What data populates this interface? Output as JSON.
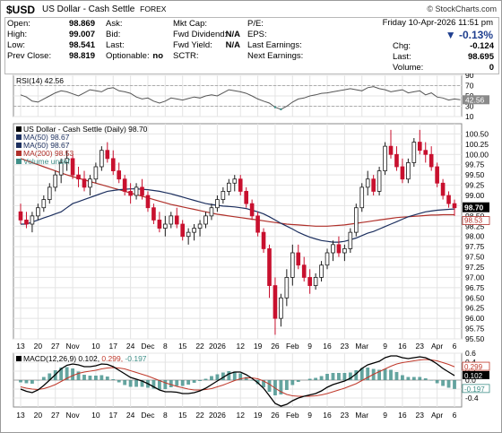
{
  "header": {
    "ticker": "$USD",
    "name": "US Dollar - Cash Settle",
    "exchange": "FOREX",
    "watermark": "© StockCharts.com"
  },
  "quote": {
    "date_line": "Friday   10-Apr-2026  11:51 pm",
    "change_pct": "-0.13%",
    "col1": [
      {
        "label": "Open:",
        "value": "98.869"
      },
      {
        "label": "High:",
        "value": "99.007"
      },
      {
        "label": "Low:",
        "value": "98.541"
      },
      {
        "label": "Prev Close:",
        "value": "98.819"
      }
    ],
    "col2": [
      {
        "label": "Ask:",
        "value": ""
      },
      {
        "label": "Bid:",
        "value": ""
      },
      {
        "label": "Last:",
        "value": ""
      },
      {
        "label": "Optionable:",
        "value": "no"
      }
    ],
    "col3": [
      {
        "label": "Mkt Cap:",
        "value": ""
      },
      {
        "label": "Fwd Dividend:",
        "value": "N/A"
      },
      {
        "label": "Fwd Yield:",
        "value": "N/A"
      },
      {
        "label": "SCTR:",
        "value": ""
      }
    ],
    "col4": [
      {
        "label": "P/E:",
        "value": ""
      },
      {
        "label": "EPS:",
        "value": ""
      },
      {
        "label": "Last Earnings:",
        "value": ""
      },
      {
        "label": "Next Earnings:",
        "value": ""
      }
    ],
    "col5": [
      {
        "label": "Chg:",
        "value": "-0.124"
      },
      {
        "label": "Last:",
        "value": "98.695"
      },
      {
        "label": "Volume:",
        "value": "0"
      }
    ]
  },
  "colors": {
    "up": "#1a1a1a",
    "down": "#c8102e",
    "ma50": "#1c2f5e",
    "ma200": "#b0302a",
    "rsi": "#555555",
    "macd": "#000000",
    "signal": "#c0392b",
    "hist": "#3f8f88"
  },
  "chart_data": [
    {
      "type": "line",
      "panel": "rsi",
      "legend": "RSI(14) 42.56",
      "ylim": [
        10,
        90
      ],
      "yticks": [
        90,
        70,
        50,
        30,
        10
      ],
      "last_label": "42.56",
      "values": [
        52,
        48,
        40,
        38,
        44,
        50,
        56,
        60,
        58,
        54,
        50,
        56,
        62,
        60,
        58,
        64,
        66,
        60,
        58,
        55,
        48,
        44,
        46,
        40,
        36,
        40,
        46,
        44,
        42,
        45,
        48,
        46,
        50,
        52,
        50,
        56,
        62,
        60,
        58,
        55,
        50,
        44,
        40,
        36,
        28,
        24,
        30,
        38,
        44,
        46,
        50,
        52,
        55,
        56,
        58,
        60,
        62,
        64,
        62,
        60,
        66,
        68,
        64,
        62,
        58,
        60,
        62,
        56,
        58,
        60,
        52,
        56,
        48,
        46,
        42,
        44,
        42.56
      ]
    },
    {
      "type": "candlestick",
      "panel": "price",
      "legend": [
        "US Dollar - Cash Settle (Daily) 98.70",
        "MA(50) 98.67",
        "MA(50) 98.67",
        "MA(200) 98.53",
        "Volume undef"
      ],
      "ylim": [
        95.5,
        100.75
      ],
      "yticks": [
        100.5,
        100.25,
        100.0,
        99.75,
        99.5,
        99.25,
        99.0,
        98.75,
        98.5,
        98.25,
        98.0,
        97.75,
        97.5,
        97.25,
        97.0,
        96.75,
        96.5,
        96.25,
        96.0,
        95.75,
        95.5
      ],
      "last_label": "98.70",
      "ma200_label": "98.53",
      "ohlc": [
        [
          98.6,
          98.8,
          98.3,
          98.4
        ],
        [
          98.4,
          98.6,
          98.2,
          98.3
        ],
        [
          98.3,
          98.6,
          98.1,
          98.5
        ],
        [
          98.5,
          98.8,
          98.4,
          98.7
        ],
        [
          98.7,
          99.0,
          98.6,
          98.9
        ],
        [
          98.9,
          99.3,
          98.8,
          99.2
        ],
        [
          99.2,
          99.6,
          99.1,
          99.5
        ],
        [
          99.5,
          99.9,
          99.3,
          99.8
        ],
        [
          99.8,
          100.1,
          99.6,
          99.9
        ],
        [
          99.9,
          100.0,
          99.4,
          99.5
        ],
        [
          99.5,
          99.7,
          99.2,
          99.4
        ],
        [
          99.4,
          99.6,
          99.1,
          99.2
        ],
        [
          99.2,
          99.5,
          99.0,
          99.4
        ],
        [
          99.4,
          99.8,
          99.3,
          99.7
        ],
        [
          99.7,
          100.2,
          99.6,
          100.1
        ],
        [
          100.1,
          100.3,
          99.8,
          99.9
        ],
        [
          99.9,
          100.1,
          99.5,
          99.6
        ],
        [
          99.6,
          99.8,
          99.3,
          99.4
        ],
        [
          99.4,
          99.5,
          99.0,
          99.1
        ],
        [
          99.1,
          99.3,
          98.8,
          99.0
        ],
        [
          99.0,
          99.3,
          98.9,
          99.2
        ],
        [
          99.2,
          99.4,
          98.9,
          99.0
        ],
        [
          99.0,
          99.1,
          98.6,
          98.7
        ],
        [
          98.7,
          98.8,
          98.3,
          98.4
        ],
        [
          98.4,
          98.6,
          98.1,
          98.2
        ],
        [
          98.2,
          98.5,
          98.0,
          98.3
        ],
        [
          98.3,
          98.6,
          98.2,
          98.5
        ],
        [
          98.5,
          98.7,
          98.2,
          98.3
        ],
        [
          98.3,
          98.4,
          97.9,
          98.0
        ],
        [
          98.0,
          98.2,
          97.8,
          98.1
        ],
        [
          98.1,
          98.3,
          97.9,
          98.2
        ],
        [
          98.2,
          98.4,
          98.0,
          98.3
        ],
        [
          98.3,
          98.6,
          98.2,
          98.5
        ],
        [
          98.5,
          98.8,
          98.4,
          98.7
        ],
        [
          98.7,
          99.0,
          98.6,
          98.9
        ],
        [
          98.9,
          99.2,
          98.8,
          99.1
        ],
        [
          99.1,
          99.4,
          99.0,
          99.3
        ],
        [
          99.3,
          99.5,
          99.1,
          99.4
        ],
        [
          99.4,
          99.5,
          99.0,
          99.1
        ],
        [
          99.1,
          99.2,
          98.7,
          98.8
        ],
        [
          98.8,
          98.9,
          98.4,
          98.5
        ],
        [
          98.5,
          98.6,
          98.0,
          98.1
        ],
        [
          98.1,
          98.2,
          97.6,
          97.7
        ],
        [
          97.7,
          97.8,
          96.5,
          96.8
        ],
        [
          96.8,
          97.0,
          95.6,
          96.0
        ],
        [
          96.0,
          96.6,
          95.8,
          96.5
        ],
        [
          96.5,
          97.2,
          96.3,
          97.0
        ],
        [
          97.0,
          97.8,
          96.8,
          97.6
        ],
        [
          97.6,
          97.8,
          97.2,
          97.3
        ],
        [
          97.3,
          97.5,
          96.9,
          97.0
        ],
        [
          97.0,
          97.2,
          96.6,
          96.8
        ],
        [
          96.8,
          97.1,
          96.7,
          97.0
        ],
        [
          97.0,
          97.4,
          96.9,
          97.3
        ],
        [
          97.3,
          97.7,
          97.2,
          97.6
        ],
        [
          97.6,
          97.9,
          97.4,
          97.8
        ],
        [
          97.8,
          98.0,
          97.5,
          97.6
        ],
        [
          97.6,
          97.8,
          97.4,
          97.7
        ],
        [
          97.7,
          98.2,
          97.6,
          98.1
        ],
        [
          98.1,
          98.8,
          98.0,
          98.7
        ],
        [
          98.7,
          99.3,
          98.6,
          99.2
        ],
        [
          99.2,
          99.6,
          99.0,
          99.4
        ],
        [
          99.4,
          99.5,
          99.0,
          99.1
        ],
        [
          99.1,
          99.7,
          99.0,
          99.6
        ],
        [
          99.6,
          100.3,
          99.5,
          100.2
        ],
        [
          100.2,
          100.6,
          99.9,
          100.0
        ],
        [
          100.0,
          100.2,
          99.6,
          99.7
        ],
        [
          99.7,
          99.9,
          99.3,
          99.4
        ],
        [
          99.4,
          99.9,
          99.3,
          99.8
        ],
        [
          99.8,
          100.4,
          99.7,
          100.3
        ],
        [
          100.3,
          100.6,
          100.0,
          100.1
        ],
        [
          100.1,
          100.3,
          99.8,
          100.0
        ],
        [
          100.0,
          100.2,
          99.6,
          99.7
        ],
        [
          99.7,
          99.8,
          99.2,
          99.3
        ],
        [
          99.3,
          99.4,
          98.9,
          99.0
        ],
        [
          99.0,
          99.1,
          98.7,
          98.8
        ],
        [
          98.8,
          98.9,
          98.5,
          98.7
        ]
      ],
      "ma50": [
        98.3,
        98.3,
        98.35,
        98.4,
        98.45,
        98.5,
        98.55,
        98.6,
        98.7,
        98.8,
        98.85,
        98.9,
        98.95,
        99.0,
        99.05,
        99.1,
        99.12,
        99.14,
        99.15,
        99.16,
        99.16,
        99.15,
        99.14,
        99.12,
        99.1,
        99.07,
        99.04,
        99.0,
        98.96,
        98.92,
        98.88,
        98.84,
        98.8,
        98.78,
        98.76,
        98.74,
        98.73,
        98.72,
        98.7,
        98.68,
        98.64,
        98.6,
        98.55,
        98.48,
        98.4,
        98.32,
        98.25,
        98.18,
        98.1,
        98.04,
        97.98,
        97.94,
        97.9,
        97.88,
        97.86,
        97.86,
        97.88,
        97.92,
        97.96,
        98.02,
        98.08,
        98.12,
        98.18,
        98.24,
        98.3,
        98.36,
        98.42,
        98.48,
        98.52,
        98.56,
        98.6,
        98.62,
        98.64,
        98.65,
        98.66,
        98.67
      ],
      "ma200": [
        99.9,
        99.85,
        99.8,
        99.75,
        99.7,
        99.65,
        99.6,
        99.55,
        99.5,
        99.46,
        99.42,
        99.38,
        99.34,
        99.3,
        99.26,
        99.22,
        99.18,
        99.14,
        99.1,
        99.06,
        99.02,
        98.98,
        98.94,
        98.9,
        98.86,
        98.82,
        98.78,
        98.75,
        98.72,
        98.69,
        98.66,
        98.63,
        98.6,
        98.57,
        98.54,
        98.52,
        98.5,
        98.48,
        98.46,
        98.44,
        98.42,
        98.4,
        98.38,
        98.36,
        98.34,
        98.32,
        98.3,
        98.29,
        98.28,
        98.27,
        98.26,
        98.25,
        98.25,
        98.25,
        98.26,
        98.27,
        98.28,
        98.3,
        98.32,
        98.34,
        98.36,
        98.38,
        98.4,
        98.42,
        98.44,
        98.46,
        98.47,
        98.48,
        98.49,
        98.5,
        98.51,
        98.52,
        98.52,
        98.53,
        98.53,
        98.53
      ],
      "xticks": [
        "13",
        "20",
        "27",
        "Nov",
        "10",
        "17",
        "24",
        "Dec",
        "8",
        "15",
        "22",
        "2026",
        "12",
        "19",
        "26",
        "Feb",
        "9",
        "16",
        "23",
        "Mar",
        "9",
        "16",
        "23",
        "Apr",
        "6"
      ]
    },
    {
      "type": "line",
      "panel": "macd",
      "legend": [
        "MACD(12,26,9)",
        "0.102",
        "0.299",
        "-0.197"
      ],
      "ylim": [
        -0.6,
        0.6
      ],
      "yticks": [
        0.6,
        0.4,
        0.2,
        0.0,
        -0.2,
        -0.4
      ],
      "macd_label": "0.102",
      "signal_label": "0.299",
      "hist_label": "-0.197",
      "macd": [
        -0.2,
        -0.25,
        -0.28,
        -0.22,
        -0.12,
        0.0,
        0.12,
        0.25,
        0.33,
        0.36,
        0.34,
        0.3,
        0.3,
        0.32,
        0.36,
        0.35,
        0.3,
        0.22,
        0.14,
        0.06,
        0.02,
        -0.02,
        -0.08,
        -0.15,
        -0.22,
        -0.26,
        -0.26,
        -0.27,
        -0.3,
        -0.3,
        -0.28,
        -0.24,
        -0.18,
        -0.1,
        -0.02,
        0.06,
        0.14,
        0.18,
        0.18,
        0.12,
        0.04,
        -0.06,
        -0.18,
        -0.35,
        -0.52,
        -0.58,
        -0.54,
        -0.46,
        -0.4,
        -0.36,
        -0.33,
        -0.3,
        -0.24,
        -0.16,
        -0.1,
        -0.06,
        -0.02,
        0.04,
        0.14,
        0.26,
        0.34,
        0.38,
        0.42,
        0.5,
        0.54,
        0.54,
        0.5,
        0.48,
        0.5,
        0.52,
        0.5,
        0.44,
        0.36,
        0.26,
        0.18,
        0.102
      ],
      "signal": [
        -0.15,
        -0.18,
        -0.2,
        -0.21,
        -0.19,
        -0.15,
        -0.1,
        -0.03,
        0.04,
        0.1,
        0.15,
        0.18,
        0.2,
        0.22,
        0.25,
        0.27,
        0.28,
        0.27,
        0.25,
        0.21,
        0.17,
        0.13,
        0.09,
        0.04,
        -0.01,
        -0.06,
        -0.1,
        -0.14,
        -0.17,
        -0.2,
        -0.22,
        -0.22,
        -0.21,
        -0.19,
        -0.15,
        -0.11,
        -0.06,
        -0.01,
        0.03,
        0.05,
        0.05,
        0.03,
        -0.02,
        -0.09,
        -0.18,
        -0.26,
        -0.32,
        -0.35,
        -0.36,
        -0.36,
        -0.36,
        -0.35,
        -0.33,
        -0.3,
        -0.26,
        -0.22,
        -0.18,
        -0.13,
        -0.08,
        -0.01,
        0.06,
        0.13,
        0.19,
        0.25,
        0.31,
        0.36,
        0.39,
        0.41,
        0.43,
        0.45,
        0.46,
        0.45,
        0.43,
        0.39,
        0.35,
        0.299
      ]
    }
  ]
}
